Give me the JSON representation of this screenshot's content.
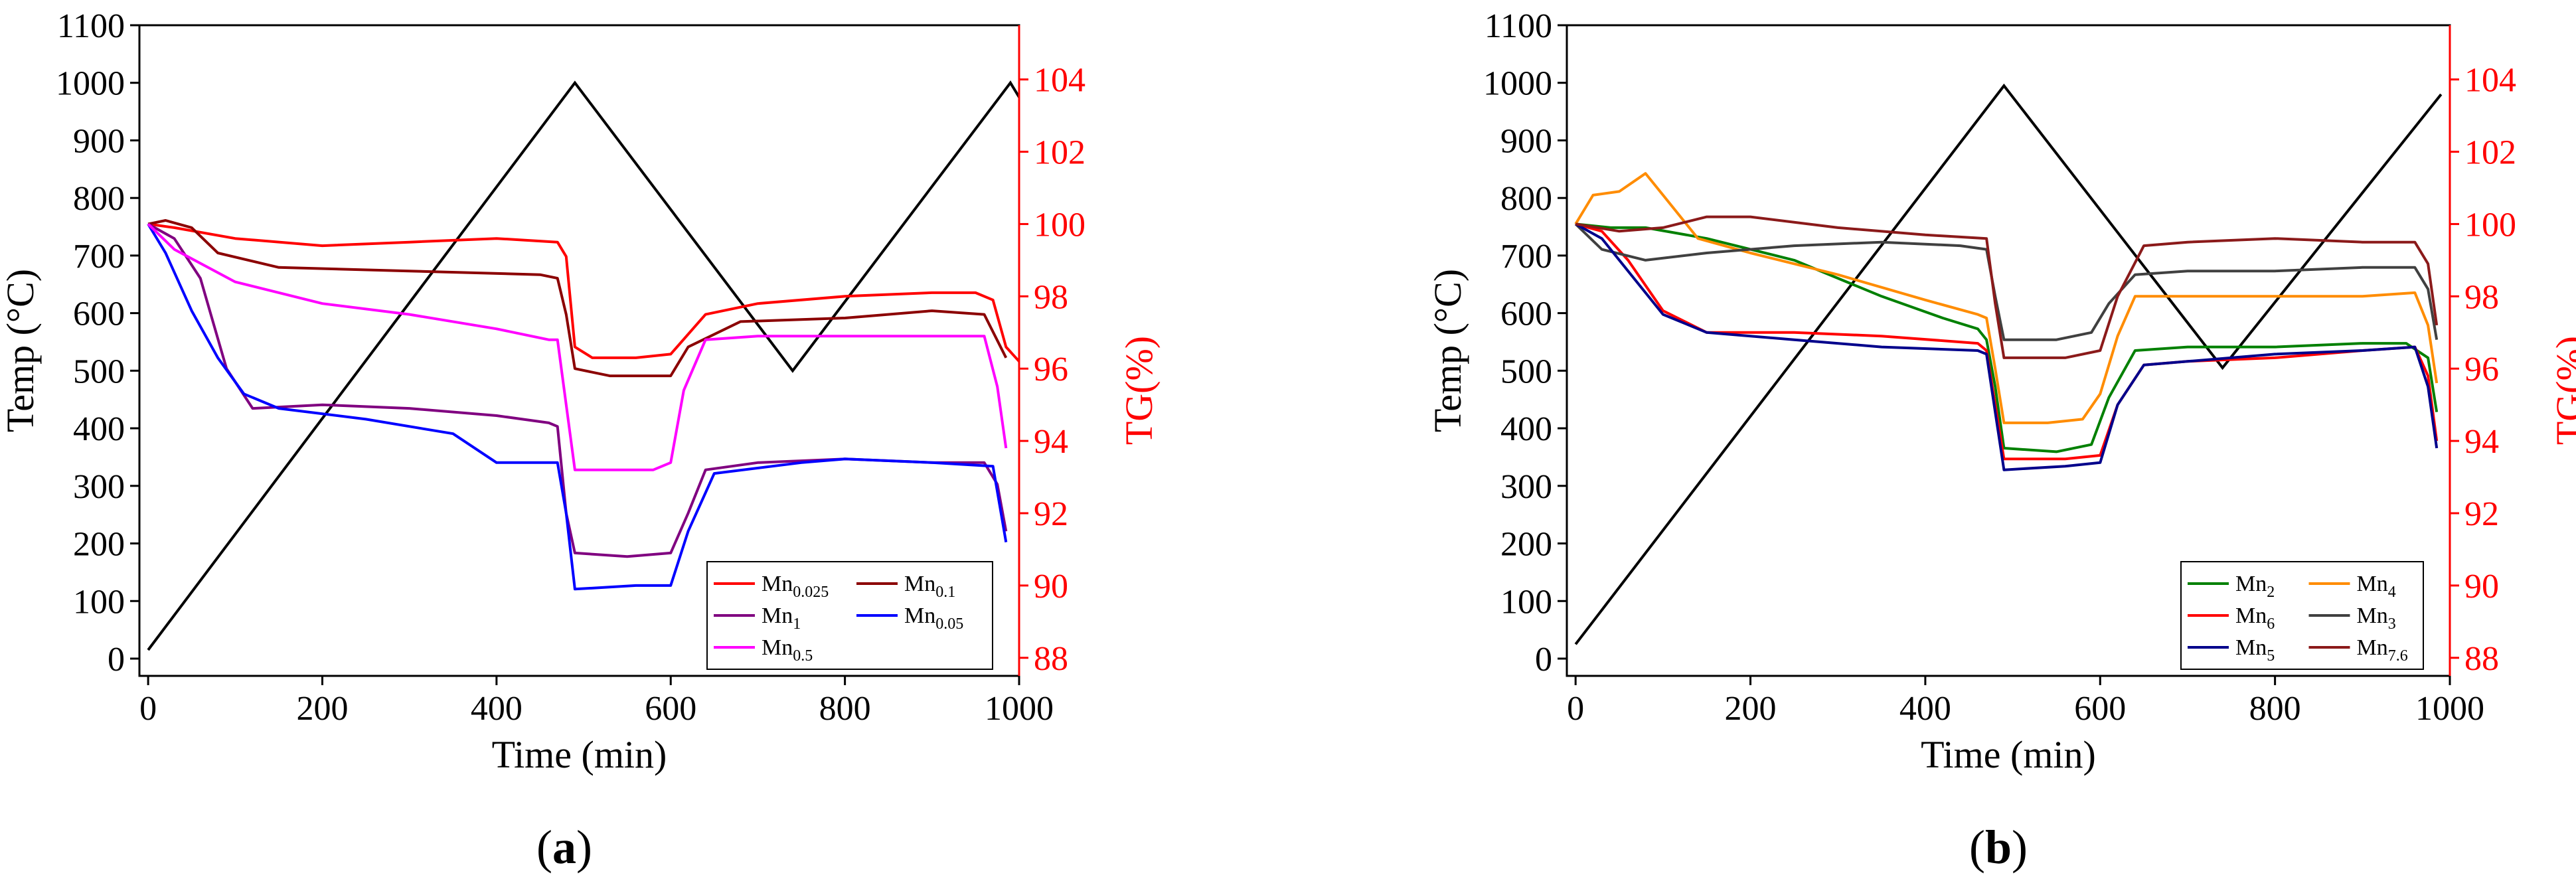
{
  "chart_data": [
    {
      "type": "line",
      "panel_label": "(a)",
      "panel_letter": "a",
      "xlabel": "Time (min)",
      "ylabel_left": "Temp (°C)",
      "ylabel_right": "TG(%)",
      "xlim": [
        -10,
        1000
      ],
      "ylim_left": [
        -30,
        1100
      ],
      "ylim_right": [
        87.5,
        105.5
      ],
      "x_ticks": [
        0,
        200,
        400,
        600,
        800,
        1000
      ],
      "y_left_ticks": [
        0,
        100,
        200,
        300,
        400,
        500,
        600,
        700,
        800,
        900,
        1000,
        1100
      ],
      "y_right_ticks": [
        88,
        90,
        92,
        94,
        96,
        98,
        100,
        102,
        104
      ],
      "legend_position": "bottom-right",
      "temperature": {
        "name": "Temperature",
        "color": "#000000",
        "axis": "left",
        "x": [
          0,
          490,
          740,
          990,
          1000
        ],
        "y": [
          15,
          1000,
          500,
          1000,
          975
        ]
      },
      "series": [
        {
          "name": "Mn0.025",
          "base": "Mn",
          "sub": "0.025",
          "color": "#ff0000",
          "axis": "right",
          "x": [
            0,
            30,
            100,
            200,
            300,
            400,
            470,
            480,
            490,
            510,
            560,
            600,
            640,
            700,
            800,
            900,
            950,
            970,
            985,
            1000
          ],
          "y": [
            100,
            99.9,
            99.6,
            99.4,
            99.5,
            99.6,
            99.5,
            99.1,
            96.6,
            96.3,
            96.3,
            96.4,
            97.5,
            97.8,
            98.0,
            98.1,
            98.1,
            97.9,
            96.6,
            96.2
          ]
        },
        {
          "name": "Mn0.1",
          "base": "Mn",
          "sub": "0.1",
          "color": "#8b0000",
          "axis": "right",
          "x": [
            0,
            20,
            50,
            80,
            150,
            300,
            450,
            470,
            480,
            490,
            530,
            600,
            620,
            680,
            800,
            900,
            960,
            985
          ],
          "y": [
            100,
            100.1,
            99.9,
            99.2,
            98.8,
            98.7,
            98.6,
            98.5,
            97.5,
            96.0,
            95.8,
            95.8,
            96.6,
            97.3,
            97.4,
            97.6,
            97.5,
            96.3
          ]
        },
        {
          "name": "Mn1",
          "base": "Mn",
          "sub": "1",
          "color": "#800080",
          "axis": "right",
          "x": [
            0,
            30,
            60,
            90,
            120,
            200,
            300,
            400,
            460,
            470,
            480,
            490,
            550,
            600,
            620,
            640,
            700,
            800,
            900,
            960,
            975,
            985
          ],
          "y": [
            100,
            99.6,
            98.5,
            96.0,
            94.9,
            95.0,
            94.9,
            94.7,
            94.5,
            94.4,
            92.0,
            90.9,
            90.8,
            90.9,
            92.0,
            93.2,
            93.4,
            93.5,
            93.4,
            93.4,
            92.8,
            91.5
          ]
        },
        {
          "name": "Mn0.05",
          "base": "Mn",
          "sub": "0.05",
          "color": "#0000ff",
          "axis": "right",
          "x": [
            0,
            20,
            50,
            80,
            110,
            150,
            250,
            350,
            400,
            470,
            480,
            490,
            560,
            600,
            620,
            650,
            750,
            800,
            900,
            970,
            985
          ],
          "y": [
            100,
            99.2,
            97.6,
            96.3,
            95.3,
            94.9,
            94.6,
            94.2,
            93.4,
            93.4,
            92.0,
            89.9,
            90.0,
            90.0,
            91.5,
            93.1,
            93.4,
            93.5,
            93.4,
            93.3,
            91.2
          ]
        },
        {
          "name": "Mn0.5",
          "base": "Mn",
          "sub": "0.5",
          "color": "#ff00ff",
          "axis": "right",
          "x": [
            0,
            30,
            100,
            200,
            300,
            400,
            460,
            470,
            480,
            490,
            580,
            600,
            615,
            640,
            700,
            800,
            900,
            960,
            975,
            985
          ],
          "y": [
            100,
            99.3,
            98.4,
            97.8,
            97.5,
            97.1,
            96.8,
            96.8,
            95.0,
            93.2,
            93.2,
            93.4,
            95.4,
            96.8,
            96.9,
            96.9,
            96.9,
            96.9,
            95.5,
            93.8
          ]
        }
      ]
    },
    {
      "type": "line",
      "panel_label": "(b)",
      "panel_letter": "b",
      "xlabel": "Time (min)",
      "ylabel_left": "Temp (°C)",
      "ylabel_right": "TG(%)",
      "xlim": [
        -10,
        1000
      ],
      "ylim_left": [
        -30,
        1100
      ],
      "ylim_right": [
        87.5,
        105.5
      ],
      "x_ticks": [
        0,
        200,
        400,
        600,
        800,
        1000
      ],
      "y_left_ticks": [
        0,
        100,
        200,
        300,
        400,
        500,
        600,
        700,
        800,
        900,
        1000,
        1100
      ],
      "y_right_ticks": [
        88,
        90,
        92,
        94,
        96,
        98,
        100,
        102,
        104
      ],
      "legend_position": "bottom-right",
      "temperature": {
        "name": "Temperature",
        "color": "#000000",
        "axis": "left",
        "x": [
          0,
          490,
          740,
          990
        ],
        "y": [
          25,
          995,
          505,
          980
        ]
      },
      "series": [
        {
          "name": "Mn2",
          "base": "Mn",
          "sub": "2",
          "color": "#008000",
          "axis": "right",
          "x": [
            0,
            40,
            80,
            150,
            250,
            350,
            420,
            460,
            470,
            480,
            490,
            550,
            590,
            610,
            640,
            700,
            800,
            900,
            950,
            975,
            985
          ],
          "y": [
            100,
            99.9,
            99.9,
            99.6,
            99.0,
            98.0,
            97.4,
            97.1,
            96.8,
            95.5,
            93.8,
            93.7,
            93.9,
            95.2,
            96.5,
            96.6,
            96.6,
            96.7,
            96.7,
            96.3,
            94.8
          ]
        },
        {
          "name": "Mn4",
          "base": "Mn",
          "sub": "4",
          "color": "#ff8c00",
          "axis": "right",
          "x": [
            0,
            20,
            50,
            80,
            100,
            140,
            200,
            300,
            400,
            460,
            470,
            480,
            490,
            540,
            580,
            600,
            620,
            640,
            700,
            800,
            900,
            960,
            975,
            985
          ],
          "y": [
            100,
            100.8,
            100.9,
            101.4,
            100.8,
            99.6,
            99.2,
            98.6,
            97.9,
            97.5,
            97.4,
            96.0,
            94.5,
            94.5,
            94.6,
            95.3,
            96.9,
            98.0,
            98.0,
            98.0,
            98.0,
            98.1,
            97.2,
            95.6
          ]
        },
        {
          "name": "Mn6",
          "base": "Mn",
          "sub": "6",
          "color": "#ff0000",
          "axis": "right",
          "x": [
            0,
            30,
            60,
            100,
            150,
            250,
            350,
            460,
            470,
            480,
            490,
            560,
            600,
            620,
            650,
            700,
            800,
            900,
            960,
            975,
            985
          ],
          "y": [
            100,
            99.8,
            99.0,
            97.6,
            97.0,
            97.0,
            96.9,
            96.7,
            96.5,
            95.0,
            93.5,
            93.5,
            93.6,
            95.0,
            96.1,
            96.2,
            96.3,
            96.5,
            96.6,
            95.8,
            94.0
          ]
        },
        {
          "name": "Mn3",
          "base": "Mn",
          "sub": "3",
          "color": "#404040",
          "axis": "right",
          "x": [
            0,
            30,
            80,
            150,
            250,
            350,
            440,
            470,
            480,
            490,
            550,
            590,
            610,
            640,
            700,
            800,
            900,
            960,
            975,
            985
          ],
          "y": [
            100,
            99.3,
            99.0,
            99.2,
            99.4,
            99.5,
            99.4,
            99.3,
            98.0,
            96.8,
            96.8,
            97.0,
            97.8,
            98.6,
            98.7,
            98.7,
            98.8,
            98.8,
            98.2,
            96.8
          ]
        },
        {
          "name": "Mn5",
          "base": "Mn",
          "sub": "5",
          "color": "#00008b",
          "axis": "right",
          "x": [
            0,
            30,
            60,
            100,
            150,
            250,
            350,
            460,
            470,
            480,
            490,
            560,
            600,
            620,
            650,
            700,
            800,
            900,
            960,
            975,
            985
          ],
          "y": [
            100,
            99.6,
            98.7,
            97.5,
            97.0,
            96.8,
            96.6,
            96.5,
            96.4,
            94.8,
            93.2,
            93.3,
            93.4,
            95.0,
            96.1,
            96.2,
            96.4,
            96.5,
            96.6,
            95.5,
            93.8
          ]
        },
        {
          "name": "Mn7.6",
          "base": "Mn",
          "sub": "7.6",
          "color": "#8b1a1a",
          "axis": "right",
          "x": [
            0,
            50,
            100,
            150,
            200,
            300,
            400,
            470,
            480,
            490,
            560,
            600,
            620,
            650,
            700,
            800,
            900,
            960,
            975,
            985
          ],
          "y": [
            100,
            99.8,
            99.9,
            100.2,
            100.2,
            99.9,
            99.7,
            99.6,
            97.8,
            96.3,
            96.3,
            96.5,
            98.0,
            99.4,
            99.5,
            99.6,
            99.5,
            99.5,
            98.9,
            97.2
          ]
        }
      ]
    }
  ]
}
